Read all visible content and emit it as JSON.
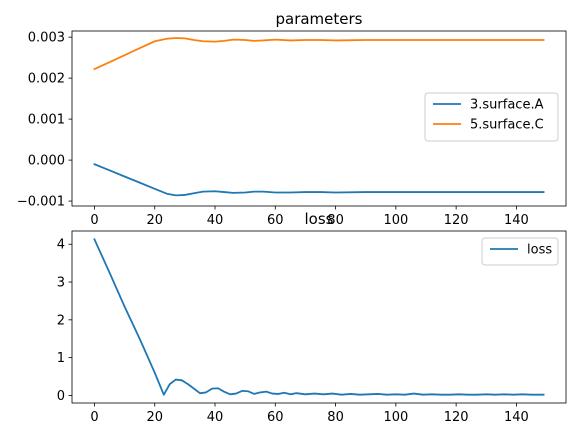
{
  "chart_data": [
    {
      "type": "line",
      "title": "parameters",
      "xlim": [
        -7.45,
        156.45
      ],
      "ylim": [
        -0.00112,
        0.00315
      ],
      "xticks": [
        0,
        20,
        40,
        60,
        80,
        100,
        120,
        140
      ],
      "xtick_labels": [
        "0",
        "20",
        "40",
        "60",
        "80",
        "100",
        "120",
        "140"
      ],
      "yticks": [
        -0.001,
        0.0,
        0.001,
        0.002,
        0.003
      ],
      "ytick_labels": [
        "−0.001",
        "0.000",
        "0.001",
        "0.002",
        "0.003"
      ],
      "grid": false,
      "legend": "center-right",
      "series": [
        {
          "name": "3.surface.A",
          "color": "#1f77b4",
          "x": [
            0,
            5,
            10,
            15,
            20,
            24,
            27,
            30,
            33,
            36,
            40,
            43,
            46,
            50,
            53,
            56,
            60,
            65,
            70,
            75,
            80,
            90,
            100,
            110,
            120,
            130,
            140,
            149
          ],
          "y": [
            -0.0001,
            -0.00025,
            -0.0004,
            -0.00055,
            -0.0007,
            -0.00082,
            -0.00086,
            -0.00085,
            -0.00081,
            -0.00077,
            -0.00076,
            -0.00078,
            -0.0008,
            -0.00079,
            -0.00077,
            -0.00077,
            -0.00079,
            -0.00079,
            -0.00078,
            -0.00078,
            -0.00079,
            -0.00078,
            -0.00078,
            -0.00078,
            -0.00078,
            -0.00078,
            -0.00078,
            -0.00078
          ]
        },
        {
          "name": "5.surface.C",
          "color": "#ff7f0e",
          "x": [
            0,
            5,
            10,
            15,
            20,
            24,
            27,
            30,
            33,
            36,
            40,
            43,
            46,
            50,
            53,
            56,
            60,
            65,
            70,
            75,
            80,
            90,
            100,
            110,
            120,
            130,
            140,
            149
          ],
          "y": [
            0.00222,
            0.00239,
            0.00256,
            0.00273,
            0.0029,
            0.00296,
            0.00298,
            0.00297,
            0.00293,
            0.0029,
            0.00289,
            0.00291,
            0.00294,
            0.00293,
            0.00291,
            0.00292,
            0.00294,
            0.00292,
            0.00293,
            0.00293,
            0.00292,
            0.00293,
            0.00293,
            0.00293,
            0.00293,
            0.00293,
            0.00293,
            0.00293
          ]
        }
      ]
    },
    {
      "type": "line",
      "title": "loss",
      "xlim": [
        -7.45,
        156.45
      ],
      "ylim": [
        -0.2,
        4.35
      ],
      "xticks": [
        0,
        20,
        40,
        60,
        80,
        100,
        120,
        140
      ],
      "xtick_labels": [
        "0",
        "20",
        "40",
        "60",
        "80",
        "100",
        "120",
        "140"
      ],
      "yticks": [
        0,
        1,
        2,
        3,
        4
      ],
      "ytick_labels": [
        "0",
        "1",
        "2",
        "3",
        "4"
      ],
      "grid": false,
      "legend": "top-right",
      "series": [
        {
          "name": "loss",
          "color": "#1f77b4",
          "x": [
            0,
            5,
            10,
            15,
            20,
            23,
            25,
            27,
            29,
            31,
            33,
            35,
            37,
            39,
            41,
            43,
            45,
            47,
            49,
            51,
            53,
            55,
            57,
            59,
            61,
            63,
            65,
            67,
            70,
            73,
            76,
            79,
            82,
            85,
            88,
            91,
            94,
            97,
            100,
            103,
            106,
            109,
            112,
            115,
            118,
            121,
            124,
            127,
            130,
            133,
            136,
            139,
            142,
            145,
            149
          ],
          "y": [
            4.13,
            3.25,
            2.35,
            1.5,
            0.6,
            0.02,
            0.3,
            0.42,
            0.4,
            0.3,
            0.18,
            0.06,
            0.08,
            0.18,
            0.19,
            0.1,
            0.03,
            0.05,
            0.12,
            0.11,
            0.04,
            0.08,
            0.1,
            0.05,
            0.04,
            0.07,
            0.03,
            0.06,
            0.03,
            0.05,
            0.03,
            0.05,
            0.02,
            0.04,
            0.02,
            0.03,
            0.04,
            0.02,
            0.03,
            0.02,
            0.05,
            0.02,
            0.03,
            0.02,
            0.02,
            0.03,
            0.02,
            0.02,
            0.03,
            0.02,
            0.03,
            0.02,
            0.03,
            0.02,
            0.02
          ]
        }
      ]
    }
  ]
}
